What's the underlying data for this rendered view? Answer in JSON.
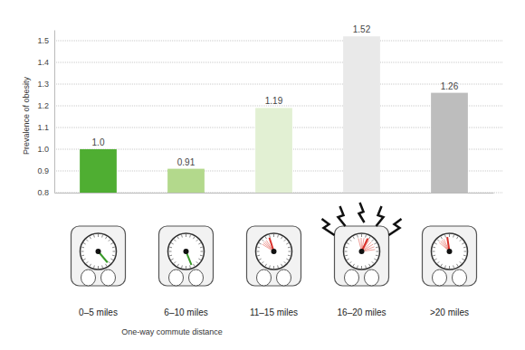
{
  "chart_data": {
    "type": "bar",
    "x_label": "One-way commute distance",
    "y_label": "Prevalence of obesity",
    "categories": [
      "0–5 miles",
      "6–10 miles",
      "11–15 miles",
      "16–20 miles",
      ">20 miles"
    ],
    "values": [
      1,
      0.91,
      1.19,
      1.52,
      1.26
    ],
    "value_labels": [
      "1.0",
      "0.91",
      "1.19",
      "1.52",
      "1.26"
    ],
    "colors": [
      "#4fae32",
      "#b3d98c",
      "#e2f0d3",
      "#e9e9e9",
      "#bdbdbd"
    ],
    "ylim": [
      0.8,
      1.55
    ],
    "yticks": [
      0.8,
      0.9,
      {
        "value": 1,
        "label": "1.0"
      },
      1.1,
      1.2,
      1.3,
      1.4,
      1.5
    ],
    "grid": true,
    "data_labels": true
  }
}
